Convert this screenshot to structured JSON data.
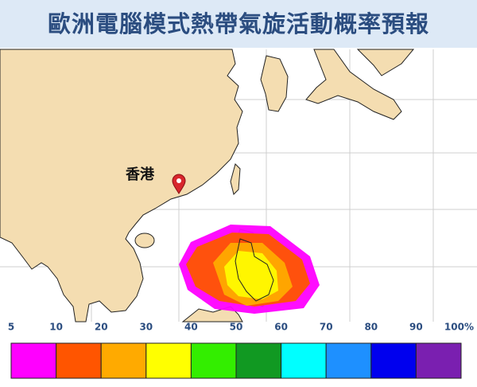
{
  "header": {
    "title": "歐洲電腦模式熱帶氣旋活動概率預報"
  },
  "map": {
    "location_label": "香港"
  },
  "legend": {
    "ticks": [
      "5",
      "10",
      "20",
      "30",
      "40",
      "50",
      "60",
      "70",
      "80",
      "90",
      "100%"
    ],
    "colors": [
      "#ff00ff",
      "#ff5500",
      "#ffaa00",
      "#ffff00",
      "#33ee00",
      "#119922",
      "#00ffff",
      "#1e90ff",
      "#0000ee",
      "#7a1fb0"
    ]
  }
}
